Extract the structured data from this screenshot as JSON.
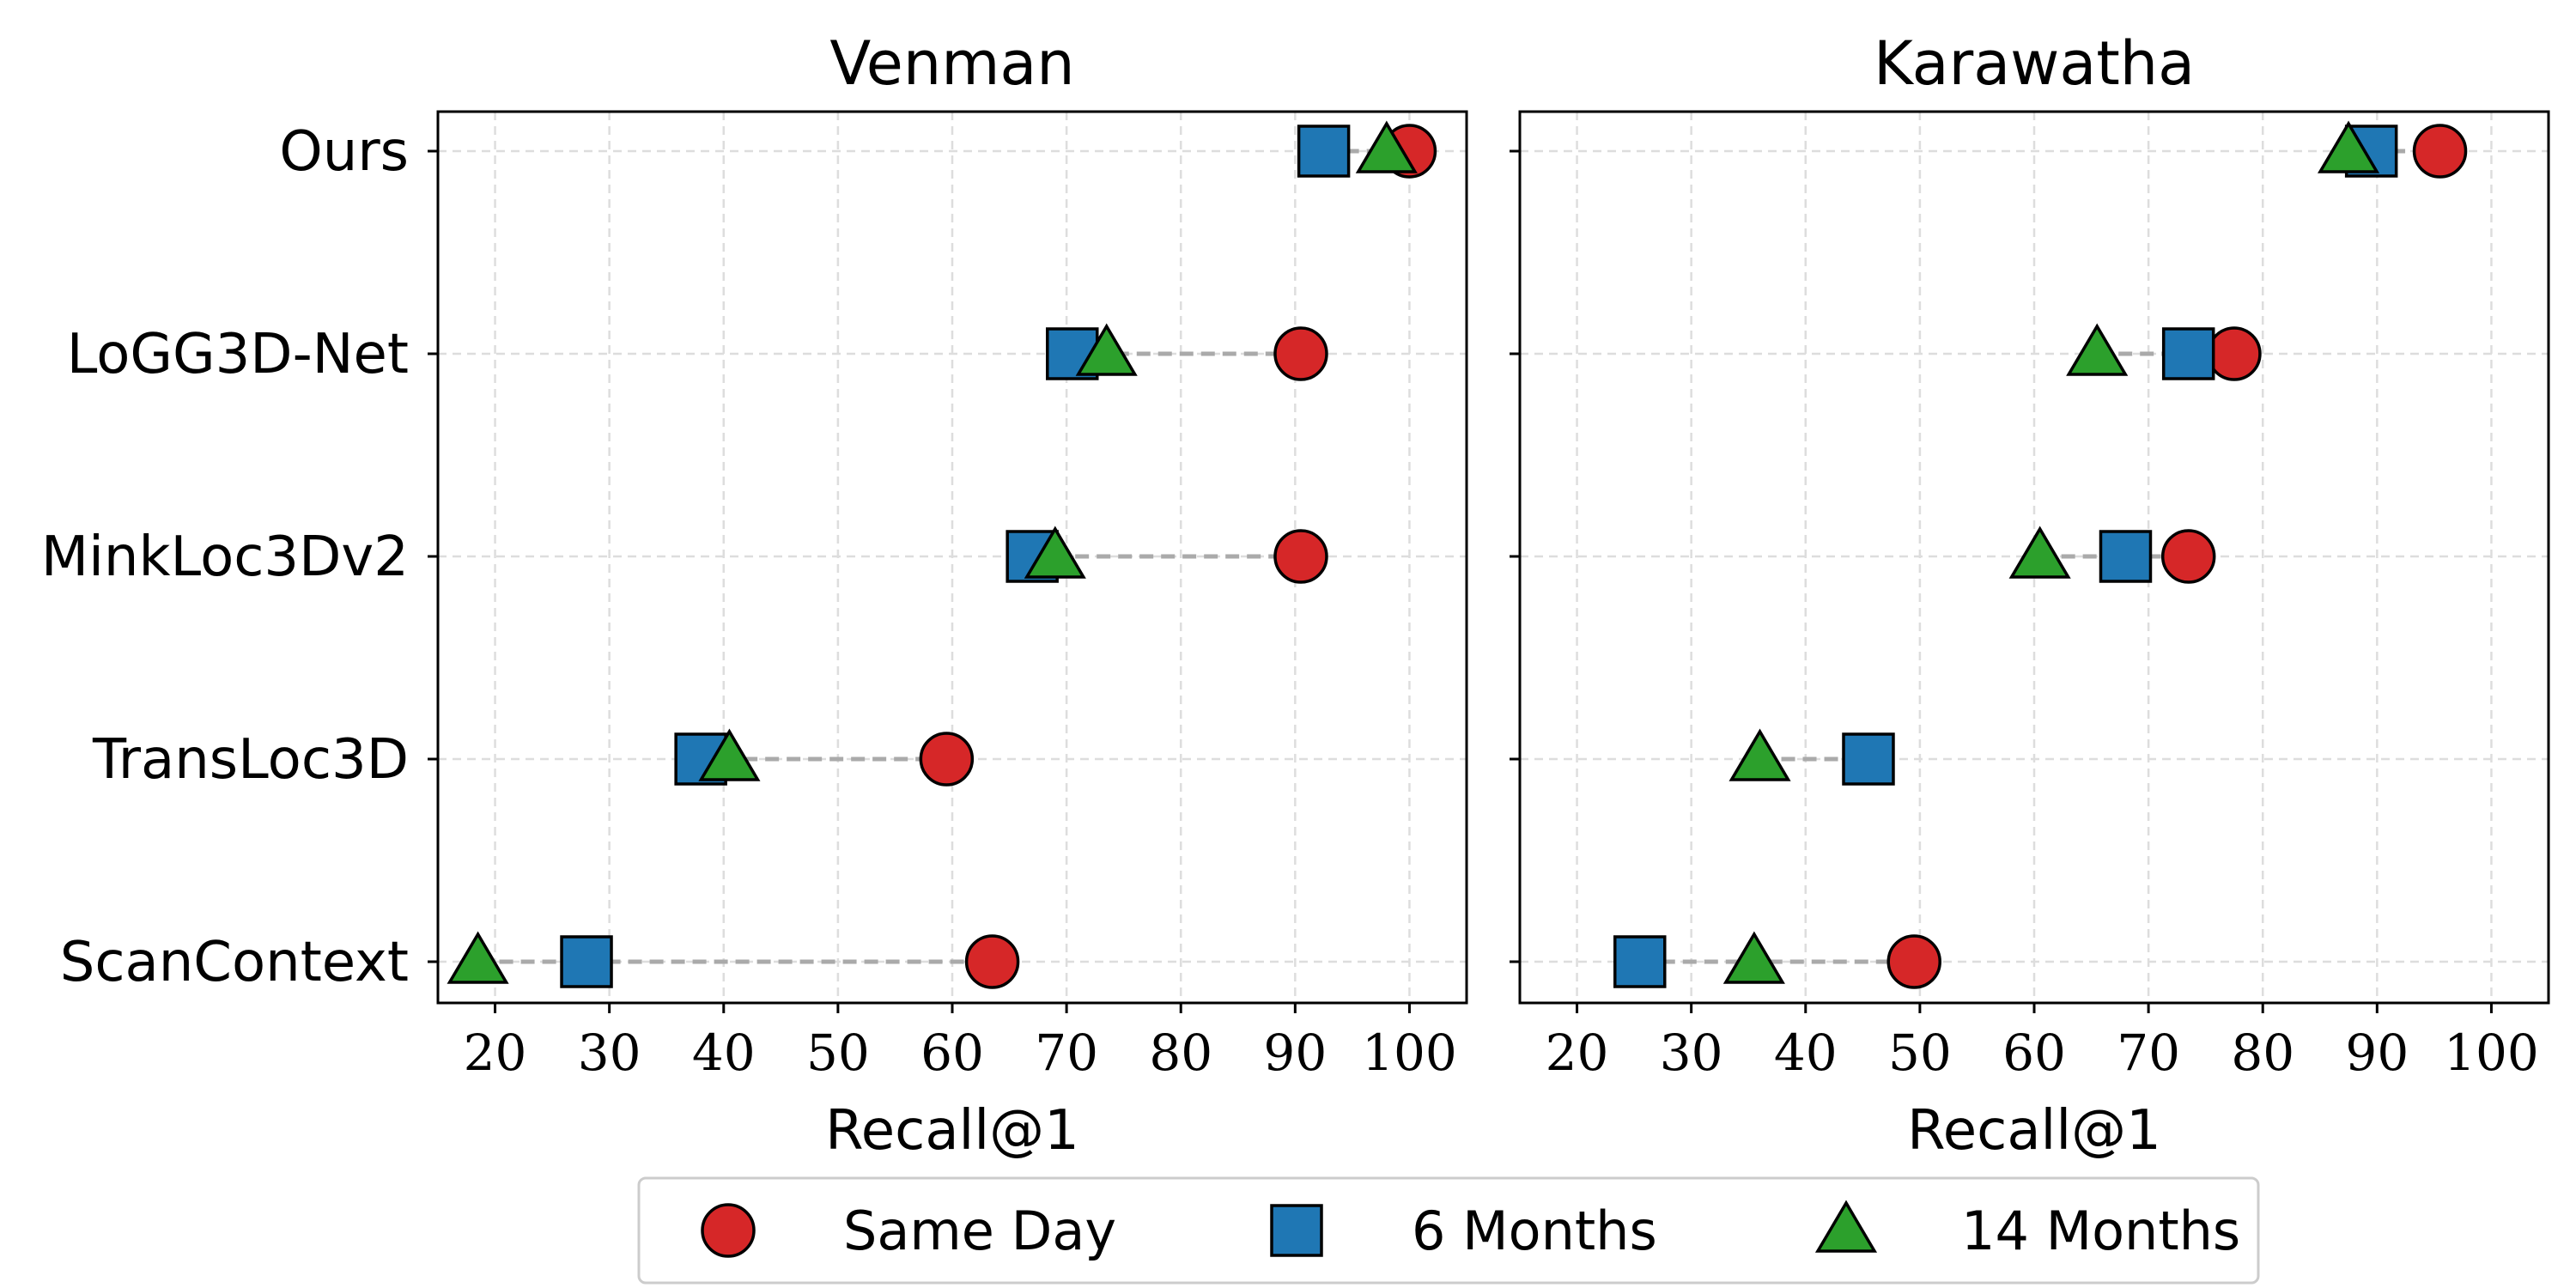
{
  "chart_data": [
    {
      "type": "scatter",
      "title": "Venman",
      "xlabel": "Recall@1",
      "xlim": [
        15,
        105
      ],
      "xticks": [
        "20",
        "30",
        "40",
        "50",
        "60",
        "70",
        "80",
        "90",
        "100"
      ],
      "categories": [
        "Ours",
        "LoGG3D-Net",
        "MinkLoc3Dv2",
        "TransLoc3D",
        "ScanContext"
      ],
      "series": [
        {
          "name": "Same Day",
          "values": [
            100,
            90.5,
            90.5,
            59.5,
            63.5
          ]
        },
        {
          "name": "6 Months",
          "values": [
            92.5,
            70.5,
            67,
            38,
            28
          ]
        },
        {
          "name": "14 Months",
          "values": [
            98,
            73.5,
            69,
            40.5,
            18.5
          ]
        }
      ],
      "grid": true
    },
    {
      "type": "scatter",
      "title": "Karawatha",
      "xlabel": "Recall@1",
      "xlim": [
        15,
        105
      ],
      "xticks": [
        "20",
        "30",
        "40",
        "50",
        "60",
        "70",
        "80",
        "90",
        "100"
      ],
      "categories": [
        "Ours",
        "LoGG3D-Net",
        "MinkLoc3Dv2",
        "TransLoc3D",
        "ScanContext"
      ],
      "series": [
        {
          "name": "Same Day",
          "values": [
            95.5,
            77.5,
            73.5,
            null,
            49.5
          ]
        },
        {
          "name": "6 Months",
          "values": [
            89.5,
            73.5,
            68,
            45.5,
            25.5
          ]
        },
        {
          "name": "14 Months",
          "values": [
            87.5,
            65.5,
            60.5,
            36,
            35.5
          ]
        }
      ],
      "grid": true
    }
  ],
  "legend": {
    "position": "bottom-center",
    "entries": [
      {
        "label": "Same Day",
        "marker": "circle",
        "color": "#d62728"
      },
      {
        "label": "6 Months",
        "marker": "square",
        "color": "#1f77b4"
      },
      {
        "label": "14 Months",
        "marker": "triangle",
        "color": "#2ca02c"
      }
    ]
  },
  "colors": {
    "connector": "#aaaaaa",
    "grid": "#dddddd",
    "edge": "#000000"
  }
}
